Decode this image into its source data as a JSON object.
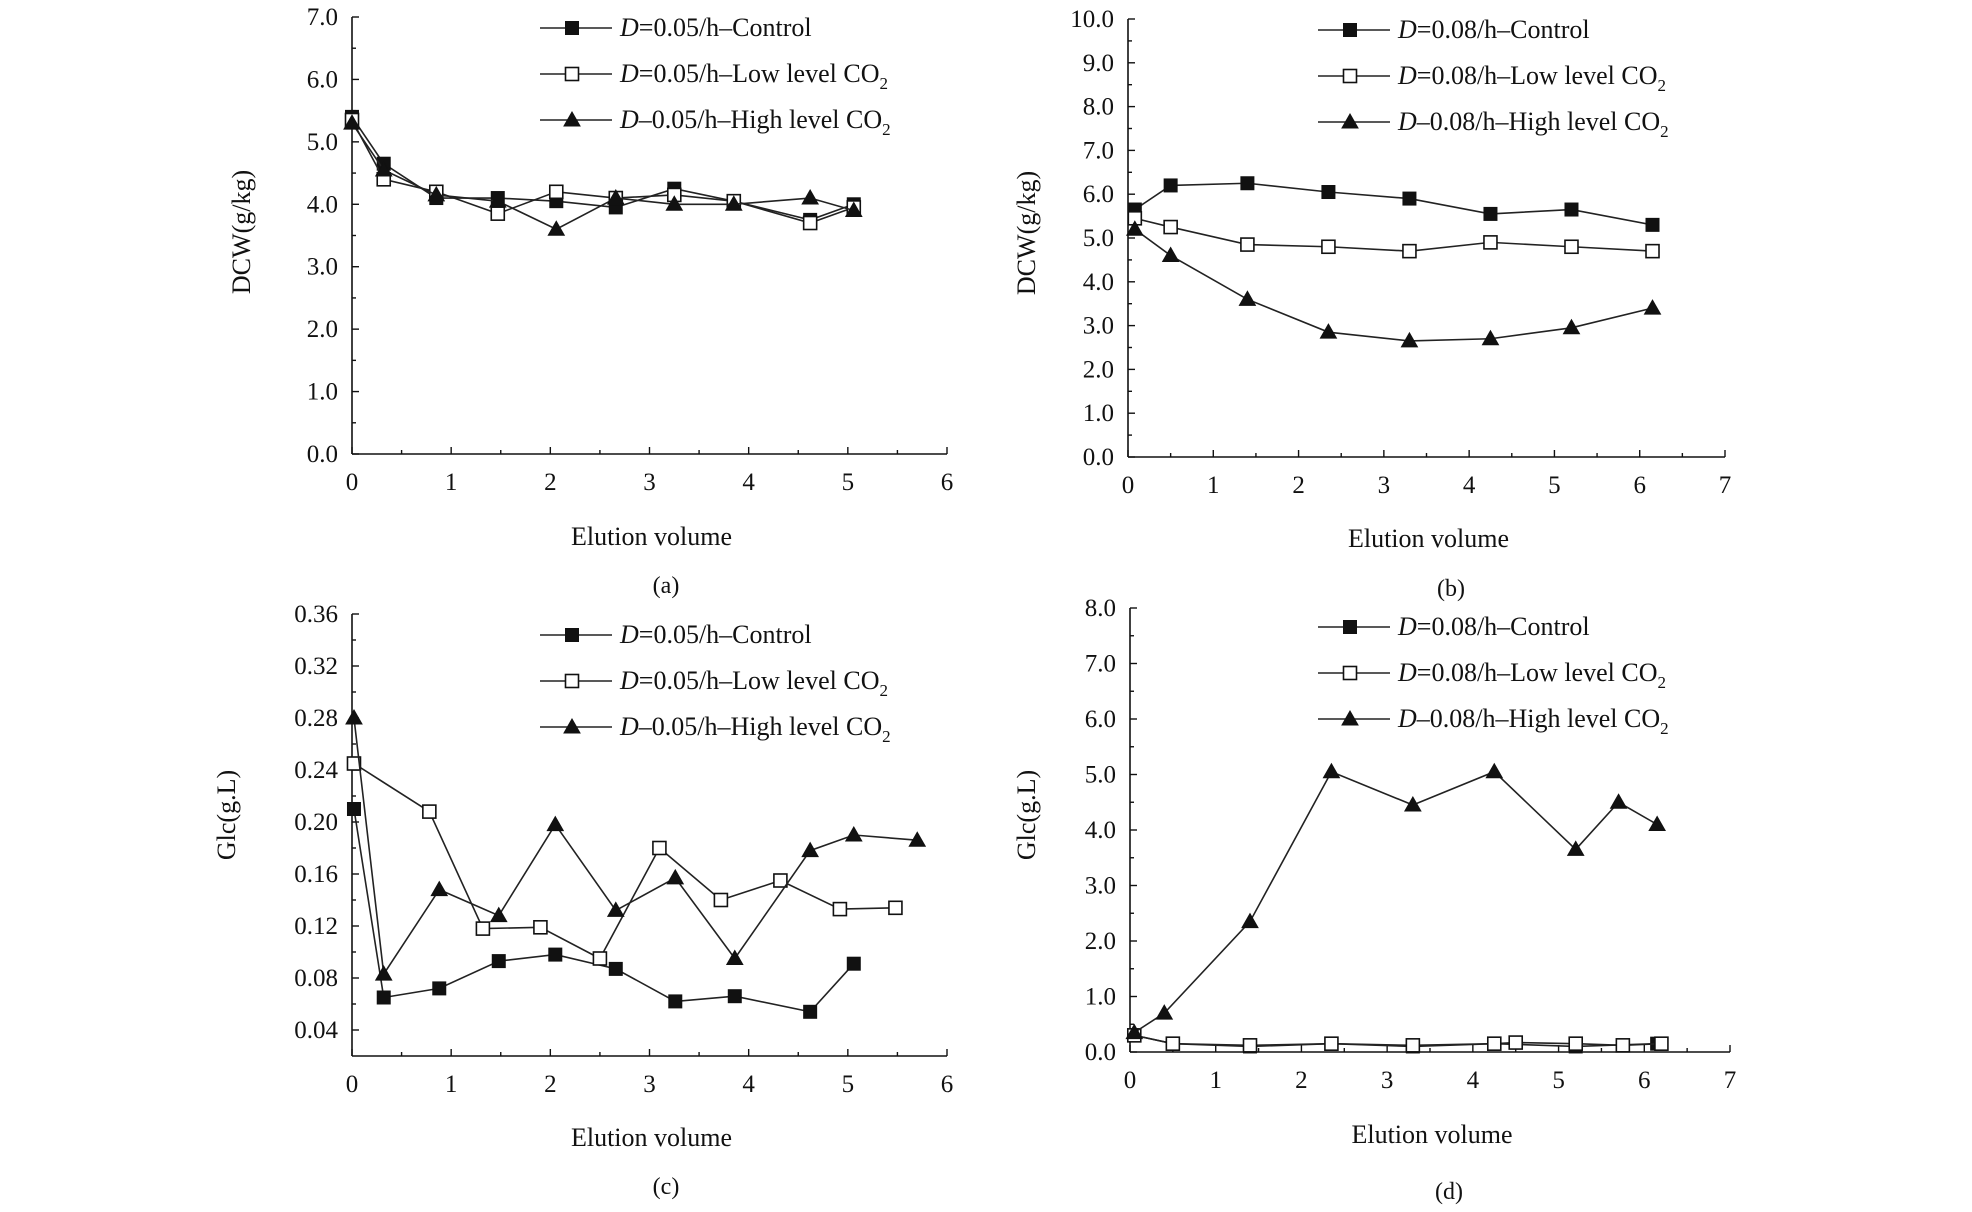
{
  "chart_data": [
    {
      "type": "line",
      "panel_label": "(a)",
      "xlabel": "Elution volume",
      "ylabel": "DCW(g/kg)",
      "xlim": [
        0,
        6
      ],
      "ylim": [
        0,
        7
      ],
      "xticks": [
        0,
        1,
        2,
        3,
        4,
        5,
        6
      ],
      "yticks": [
        0,
        1,
        2,
        3,
        4,
        5,
        6,
        7
      ],
      "xtick_labels": [
        "0",
        "1",
        "2",
        "3",
        "4",
        "5",
        "6"
      ],
      "ytick_labels": [
        "0.0",
        "1.0",
        "2.0",
        "3.0",
        "4.0",
        "5.0",
        "6.0",
        "7.0"
      ],
      "legend_position": "top-right",
      "series": [
        {
          "name": "Control",
          "legend": {
            "italic": "D",
            "text": "=0.05/h–Control",
            "sub": ""
          },
          "marker": "square-filled",
          "x": [
            0,
            0.32,
            0.85,
            1.47,
            2.06,
            2.66,
            3.25,
            3.85,
            4.62,
            5.06
          ],
          "y": [
            5.4,
            4.65,
            4.1,
            4.1,
            4.05,
            3.95,
            4.25,
            4.05,
            3.75,
            4.0
          ]
        },
        {
          "name": "Low level CO2",
          "legend": {
            "italic": "D",
            "text": "=0.05/h–Low level CO",
            "sub": "2"
          },
          "marker": "square-open",
          "x": [
            0,
            0.32,
            0.85,
            1.47,
            2.06,
            2.66,
            3.25,
            3.85,
            4.62,
            5.06
          ],
          "y": [
            5.35,
            4.4,
            4.2,
            3.85,
            4.2,
            4.1,
            4.15,
            4.05,
            3.7,
            3.95
          ]
        },
        {
          "name": "High level CO2",
          "legend": {
            "italic": "D",
            "text": "–0.05/h–High level CO",
            "sub": "2"
          },
          "marker": "triangle-filled",
          "x": [
            0,
            0.32,
            0.85,
            1.47,
            2.06,
            2.66,
            3.25,
            3.85,
            4.62,
            5.06
          ],
          "y": [
            5.3,
            4.55,
            4.15,
            4.05,
            3.6,
            4.1,
            4.0,
            4.0,
            4.1,
            3.9
          ]
        }
      ]
    },
    {
      "type": "line",
      "panel_label": "(b)",
      "xlabel": "Elution volume",
      "ylabel": "DCW(g/kg)",
      "xlim": [
        0,
        7
      ],
      "ylim": [
        0,
        10
      ],
      "xticks": [
        0,
        1,
        2,
        3,
        4,
        5,
        6,
        7
      ],
      "yticks": [
        0,
        1,
        2,
        3,
        4,
        5,
        6,
        7,
        8,
        9,
        10
      ],
      "xtick_labels": [
        "0",
        "1",
        "2",
        "3",
        "4",
        "5",
        "6",
        "7"
      ],
      "ytick_labels": [
        "0.0",
        "1.0",
        "2.0",
        "3.0",
        "4.0",
        "5.0",
        "6.0",
        "7.0",
        "8.0",
        "9.0",
        "10.0"
      ],
      "legend_position": "top-right",
      "series": [
        {
          "name": "Control",
          "legend": {
            "italic": "D",
            "text": "=0.08/h–Control",
            "sub": ""
          },
          "marker": "square-filled",
          "x": [
            0.08,
            0.5,
            1.4,
            2.35,
            3.3,
            4.25,
            5.2,
            6.15
          ],
          "y": [
            5.65,
            6.2,
            6.25,
            6.05,
            5.9,
            5.55,
            5.65,
            5.3
          ]
        },
        {
          "name": "Low level CO2",
          "legend": {
            "italic": "D",
            "text": "=0.08/h–Low level CO",
            "sub": "2"
          },
          "marker": "square-open",
          "x": [
            0.08,
            0.5,
            1.4,
            2.35,
            3.3,
            4.25,
            5.2,
            6.15
          ],
          "y": [
            5.45,
            5.25,
            4.85,
            4.8,
            4.7,
            4.9,
            4.8,
            4.7
          ]
        },
        {
          "name": "High level CO2",
          "legend": {
            "italic": "D",
            "text": "–0.08/h–High level CO",
            "sub": "2"
          },
          "marker": "triangle-filled",
          "x": [
            0.08,
            0.5,
            1.4,
            2.35,
            3.3,
            4.25,
            5.2,
            6.15
          ],
          "y": [
            5.2,
            4.6,
            3.6,
            2.85,
            2.65,
            2.7,
            2.95,
            3.4
          ]
        }
      ]
    },
    {
      "type": "line",
      "panel_label": "(c)",
      "xlabel": "Elution volume",
      "ylabel": "Glc(g.L)",
      "xlim": [
        0,
        6
      ],
      "ylim": [
        0.02,
        0.36
      ],
      "xticks": [
        0,
        1,
        2,
        3,
        4,
        5,
        6
      ],
      "yticks": [
        0.04,
        0.08,
        0.12,
        0.16,
        0.2,
        0.24,
        0.28,
        0.32,
        0.36
      ],
      "xtick_labels": [
        "0",
        "1",
        "2",
        "3",
        "4",
        "5",
        "6"
      ],
      "ytick_labels": [
        "0.04",
        "0.08",
        "0.12",
        "0.16",
        "0.20",
        "0.24",
        "0.28",
        "0.32",
        "0.36"
      ],
      "legend_position": "top-right",
      "series": [
        {
          "name": "Control",
          "legend": {
            "italic": "D",
            "text": "=0.05/h–Control",
            "sub": ""
          },
          "marker": "square-filled",
          "x": [
            0.02,
            0.32,
            0.88,
            1.48,
            2.05,
            2.66,
            3.26,
            3.86,
            4.62,
            5.06
          ],
          "y": [
            0.21,
            0.065,
            0.072,
            0.093,
            0.098,
            0.087,
            0.062,
            0.066,
            0.054,
            0.091
          ]
        },
        {
          "name": "Low level CO2",
          "legend": {
            "italic": "D",
            "text": "=0.05/h–Low level CO",
            "sub": "2"
          },
          "marker": "square-open",
          "x": [
            0.02,
            0.78,
            1.32,
            1.9,
            2.5,
            3.1,
            3.72,
            4.32,
            4.92,
            5.48
          ],
          "y": [
            0.245,
            0.208,
            0.118,
            0.119,
            0.095,
            0.18,
            0.14,
            0.155,
            0.133,
            0.134
          ]
        },
        {
          "name": "High level CO2",
          "legend": {
            "italic": "D",
            "text": "–0.05/h–High level CO",
            "sub": "2"
          },
          "marker": "triangle-filled",
          "x": [
            0.02,
            0.32,
            0.88,
            1.48,
            2.05,
            2.66,
            3.26,
            3.86,
            4.62,
            5.06,
            5.7
          ],
          "y": [
            0.28,
            0.083,
            0.148,
            0.128,
            0.198,
            0.132,
            0.157,
            0.095,
            0.178,
            0.19,
            0.186
          ]
        }
      ]
    },
    {
      "type": "line",
      "panel_label": "(d)",
      "xlabel": "Elution volume",
      "ylabel": "Glc(g.L)",
      "xlim": [
        0,
        7
      ],
      "ylim": [
        0,
        8
      ],
      "xticks": [
        0,
        1,
        2,
        3,
        4,
        5,
        6,
        7
      ],
      "yticks": [
        0,
        1,
        2,
        3,
        4,
        5,
        6,
        7,
        8
      ],
      "xtick_labels": [
        "0",
        "1",
        "2",
        "3",
        "4",
        "5",
        "6",
        "7"
      ],
      "ytick_labels": [
        "0.0",
        "1.0",
        "2.0",
        "3.0",
        "4.0",
        "5.0",
        "6.0",
        "7.0",
        "8.0"
      ],
      "legend_position": "top-right",
      "series": [
        {
          "name": "Control",
          "legend": {
            "italic": "D",
            "text": "=0.08/h–Control",
            "sub": ""
          },
          "marker": "square-filled",
          "x": [
            0.05,
            0.5,
            1.4,
            2.35,
            3.3,
            4.25,
            5.2,
            6.15
          ],
          "y": [
            0.3,
            0.15,
            0.1,
            0.15,
            0.1,
            0.15,
            0.1,
            0.15
          ]
        },
        {
          "name": "Low level CO2",
          "legend": {
            "italic": "D",
            "text": "=0.08/h–Low level CO",
            "sub": "2"
          },
          "marker": "square-open",
          "x": [
            0.05,
            0.5,
            1.4,
            2.35,
            3.3,
            4.25,
            4.5,
            5.2,
            5.75,
            6.2
          ],
          "y": [
            0.3,
            0.15,
            0.12,
            0.15,
            0.12,
            0.15,
            0.17,
            0.15,
            0.12,
            0.15
          ]
        },
        {
          "name": "High level CO2",
          "legend": {
            "italic": "D",
            "text": "–0.08/h–High level CO",
            "sub": "2"
          },
          "marker": "triangle-filled",
          "x": [
            0.05,
            0.4,
            1.4,
            2.35,
            3.3,
            4.25,
            5.2,
            5.7,
            6.15
          ],
          "y": [
            0.35,
            0.7,
            2.35,
            5.05,
            4.45,
            5.05,
            3.65,
            4.5,
            4.1
          ]
        }
      ]
    }
  ]
}
